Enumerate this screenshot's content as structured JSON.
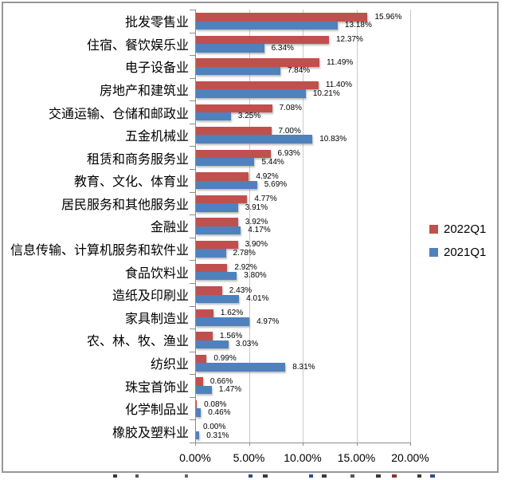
{
  "chart_data": {
    "type": "bar",
    "orientation": "horizontal",
    "title": "",
    "categories": [
      "批发零售业",
      "住宿、餐饮娱乐业",
      "电子设备业",
      "房地产和建筑业",
      "交通运输、仓储和邮政业",
      "五金机械业",
      "租赁和商务服务业",
      "教育、文化、体育业",
      "居民服务和其他服务业",
      "金融业",
      "信息传输、计算机服务和软件业",
      "食品饮料业",
      "造纸及印刷业",
      "家具制造业",
      "农、林、牧、渔业",
      "纺织业",
      "珠宝首饰业",
      "化学制品业",
      "橡胶及塑料业"
    ],
    "series": [
      {
        "name": "2022Q1",
        "color": "#c0504d",
        "values": [
          15.96,
          12.37,
          11.49,
          11.4,
          7.08,
          7.0,
          6.93,
          4.92,
          4.77,
          3.92,
          3.9,
          2.92,
          2.43,
          1.62,
          1.56,
          0.99,
          0.66,
          0.08,
          0.0
        ],
        "labels": [
          "15.96%",
          "12.37%",
          "11.49%",
          "11.40%",
          "7.08%",
          "7.00%",
          "6.93%",
          "4.92%",
          "4.77%",
          "3.92%",
          "3.90%",
          "2.92%",
          "2.43%",
          "1.62%",
          "1.56%",
          "0.99%",
          "0.66%",
          "0.08%",
          "0.00%"
        ]
      },
      {
        "name": "2021Q1",
        "color": "#4f81bd",
        "values": [
          13.18,
          6.34,
          7.84,
          10.21,
          3.25,
          10.83,
          5.44,
          5.69,
          3.91,
          4.17,
          2.78,
          3.8,
          4.01,
          4.97,
          3.03,
          8.31,
          1.47,
          0.46,
          0.31
        ],
        "labels": [
          "13.18%",
          "6.34%",
          "7.84%",
          "10.21%",
          "3.25%",
          "10.83%",
          "5.44%",
          "5.69%",
          "3.91%",
          "4.17%",
          "2.78%",
          "3.80%",
          "4.01%",
          "4.97%",
          "3.03%",
          "8.31%",
          "1.47%",
          "0.46%",
          "0.31%"
        ]
      }
    ],
    "x_ticks": [
      "0.00%",
      "5.00%",
      "10.00%",
      "15.00%",
      "20.00%"
    ],
    "x_tick_values": [
      0,
      5,
      10,
      15,
      20
    ],
    "xlim": [
      0,
      20
    ],
    "grid": true,
    "legend_position": "right"
  }
}
